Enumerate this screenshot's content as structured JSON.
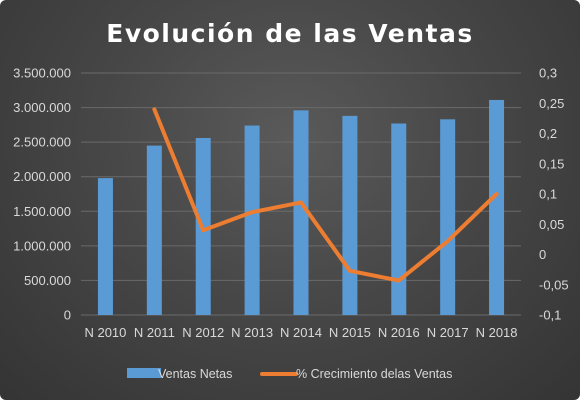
{
  "chart_data": {
    "type": "bar",
    "title": "Evolución de las Ventas",
    "categories": [
      "N 2010",
      "N 2011",
      "N 2012",
      "N 2013",
      "N 2014",
      "N 2015",
      "N 2016",
      "N 2017",
      "N 2018"
    ],
    "bar_series": {
      "name": "Ventas Netas",
      "color": "#5b9bd5",
      "values": [
        1980000,
        2450000,
        2560000,
        2740000,
        2960000,
        2880000,
        2770000,
        2830000,
        3110000
      ]
    },
    "line_series": {
      "name": "% Crecimiento delas Ventas",
      "color": "#ed7d31",
      "values": [
        null,
        0.24,
        0.04,
        0.07,
        0.086,
        -0.027,
        -0.043,
        0.022,
        0.1
      ]
    },
    "y_left": {
      "min": 0,
      "max": 3500000,
      "ticks": [
        0,
        500000,
        1000000,
        1500000,
        2000000,
        2500000,
        3000000,
        3500000
      ],
      "tick_labels": [
        "0",
        "500.000",
        "1.000.000",
        "1.500.000",
        "2.000.000",
        "2.500.000",
        "3.000.000",
        "3.500.000"
      ]
    },
    "y_right": {
      "min": -0.1,
      "max": 0.3,
      "ticks": [
        -0.1,
        -0.05,
        0,
        0.05,
        0.1,
        0.15,
        0.2,
        0.25,
        0.3
      ],
      "tick_labels": [
        "-0,1",
        "-0,05",
        "0",
        "0,05",
        "0,1",
        "0,15",
        "0,2",
        "0,25",
        "0,3"
      ]
    },
    "grid": true,
    "legend_position": "bottom"
  }
}
